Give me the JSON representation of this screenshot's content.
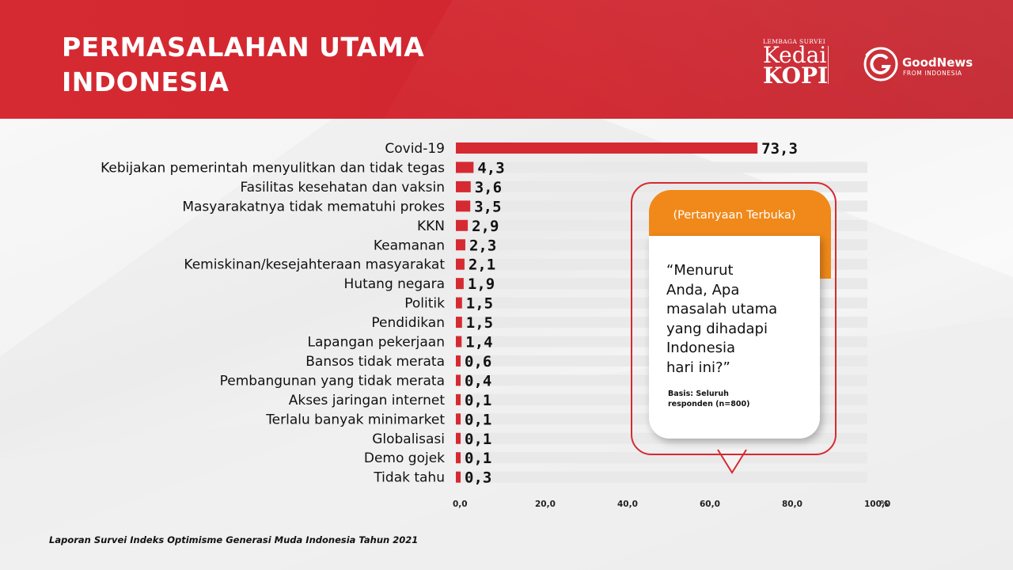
{
  "header": {
    "title_line1": "PERMASALAHAN UTAMA",
    "title_line2": "INDONESIA"
  },
  "logos": {
    "kedai_small": "LEMBAGA SURVEI",
    "kedai_line1": "Kedai",
    "kedai_line2": "KOPI",
    "goodnews_name": "GoodNews",
    "goodnews_sub": "FROM INDONESIA"
  },
  "colors": {
    "accent_red": "#d62a32",
    "bar_red": "#d62a32",
    "track_gray": "#e9e9e9",
    "card_orange": "#f0891a"
  },
  "chart_data": {
    "type": "bar",
    "orientation": "horizontal",
    "categories": [
      "Covid-19",
      "Kebijakan pemerintah menyulitkan dan tidak tegas",
      "Fasilitas kesehatan dan vaksin",
      "Masyarakatnya tidak mematuhi prokes",
      "KKN",
      "Keamanan",
      "Kemiskinan/kesejahteraan masyarakat",
      "Hutang negara",
      "Politik",
      "Pendidikan",
      "Lapangan pekerjaan",
      "Bansos tidak merata",
      "Pembangunan yang tidak merata",
      "Akses jaringan internet",
      "Terlalu banyak minimarket",
      "Globalisasi",
      "Demo gojek",
      "Tidak tahu"
    ],
    "values": [
      73.3,
      4.3,
      3.6,
      3.5,
      2.9,
      2.3,
      2.1,
      1.9,
      1.5,
      1.5,
      1.4,
      0.6,
      0.4,
      0.1,
      0.1,
      0.1,
      0.1,
      0.3
    ],
    "value_labels": [
      "73,3",
      "4,3",
      "3,6",
      "3,5",
      "2,9",
      "2,3",
      "2,1",
      "1,9",
      "1,5",
      "1,5",
      "1,4",
      "0,6",
      "0,4",
      "0,1",
      "0,1",
      "0,1",
      "0,1",
      "0,3"
    ],
    "xlim": [
      0,
      100
    ],
    "x_ticks": [
      "0,0",
      "20,0",
      "40,0",
      "60,0",
      "80,0",
      "100,0"
    ],
    "x_unit": "%",
    "title": "",
    "xlabel": "",
    "ylabel": "",
    "grid": false
  },
  "callout": {
    "header": "(Pertanyaan Terbuka)",
    "question_lines": [
      "“Menurut",
      "Anda, Apa",
      "masalah utama",
      "yang dihadapi",
      "Indonesia",
      "hari ini?”"
    ],
    "basis_lines": [
      "Basis: Seluruh",
      "responden (n=800)"
    ]
  },
  "footer": {
    "source": "Laporan Survei Indeks Optimisme Generasi Muda Indonesia Tahun 2021"
  }
}
